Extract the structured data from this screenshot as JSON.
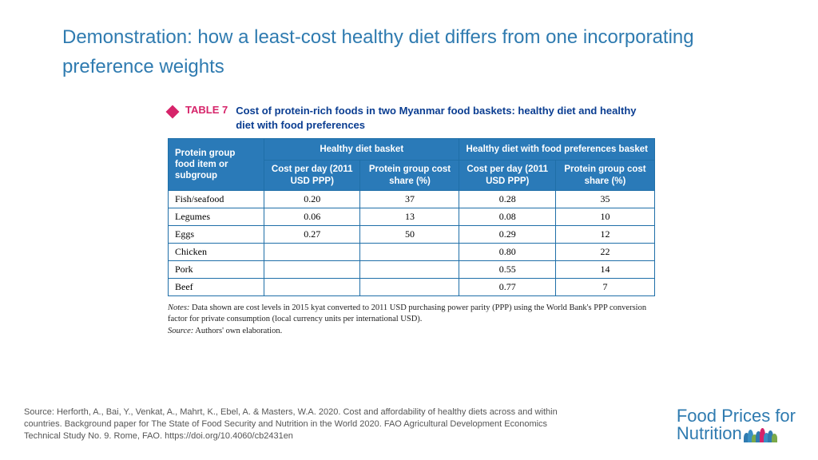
{
  "colors": {
    "title": "#2f7bb0",
    "diamond": "#d6246a",
    "table_label": "#d6246a",
    "table_caption": "#0a3d91",
    "th_bg": "#2a7ab8",
    "th_border": "#1f6fa8",
    "logo": "#2f7bb0",
    "people": [
      "#2f7bb0",
      "#3a8fc4",
      "#7aa94a",
      "#2f7bb0",
      "#d6246a",
      "#3a8fc4",
      "#2f7bb0",
      "#7aa94a"
    ]
  },
  "title": "Demonstration: how a least-cost healthy diet differs from one incorporating preference weights",
  "table": {
    "label": "TABLE 7",
    "caption": "Cost of protein-rich foods in two Myanmar food baskets: healthy diet and healthy diet with food preferences",
    "row_header": "Protein group food item or subgroup",
    "group_headers": [
      "Healthy diet basket",
      "Healthy diet with food preferences basket"
    ],
    "sub_headers": [
      "Cost per day (2011 USD PPP)",
      "Protein group cost share (%)",
      "Cost per day (2011 USD PPP)",
      "Protein group cost share (%)"
    ],
    "rows": [
      {
        "name": "Fish/seafood",
        "c": [
          "0.20",
          "37",
          "0.28",
          "35"
        ]
      },
      {
        "name": "Legumes",
        "c": [
          "0.06",
          "13",
          "0.08",
          "10"
        ]
      },
      {
        "name": "Eggs",
        "c": [
          "0.27",
          "50",
          "0.29",
          "12"
        ]
      },
      {
        "name": "Chicken",
        "c": [
          "",
          "",
          "0.80",
          "22"
        ]
      },
      {
        "name": "Pork",
        "c": [
          "",
          "",
          "0.55",
          "14"
        ]
      },
      {
        "name": "Beef",
        "c": [
          "",
          "",
          "0.77",
          "7"
        ]
      }
    ],
    "notes_label": "Notes:",
    "notes_text": " Data shown are cost levels in 2015 kyat converted to 2011 USD purchasing power parity (PPP) using the World Bank's PPP conversion factor for private consumption (local currency units per international USD).",
    "source_label": "Source:",
    "source_text": " Authors' own elaboration."
  },
  "footer_source": "Source: Herforth, A., Bai, Y., Venkat, A., Mahrt, K., Ebel, A. & Masters, W.A. 2020. Cost and affordability of  healthy diets across and within countries. Background paper for The State of Food Security and Nutrition in the World 2020. FAO Agricultural Development Economics Technical Study No. 9. Rome, FAO. https://doi.org/10.4060/cb2431en",
  "logo": {
    "line1": "Food Prices for",
    "line2": "Nutrition"
  }
}
